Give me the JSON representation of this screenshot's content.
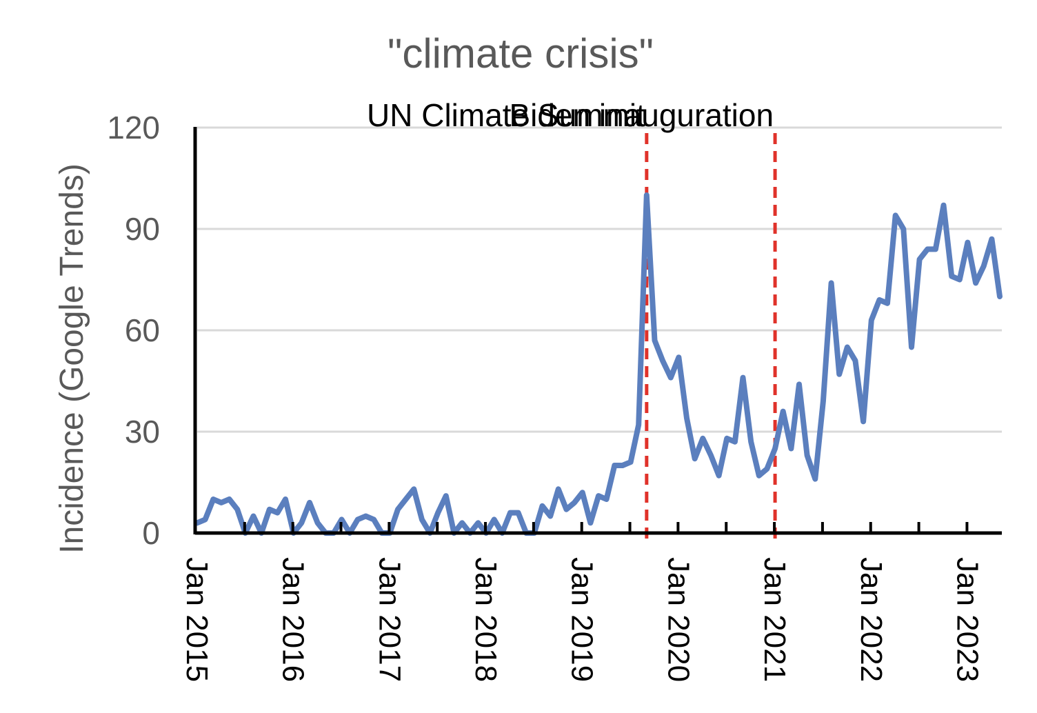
{
  "chart_data": {
    "type": "line",
    "title": "\"climate crisis\"",
    "xlabel": "",
    "ylabel": "Incidence (Google Trends)",
    "ylim": [
      0,
      120
    ],
    "y_ticks": [
      "0",
      "30",
      "60",
      "90",
      "120"
    ],
    "x_tick_labels": [
      "Jan 2015",
      "Jan 2016",
      "Jan 2017",
      "Jan 2018",
      "Jan 2019",
      "Jan 2020",
      "Jan 2021",
      "Jan 2022",
      "Jan 2023"
    ],
    "x_start": "2015-01",
    "grid": true,
    "series": [
      {
        "color": "#5b7fbe",
        "values": [
          3,
          4,
          10,
          9,
          10,
          7,
          0,
          5,
          0,
          7,
          6,
          10,
          0,
          3,
          9,
          3,
          0,
          0,
          4,
          0,
          4,
          5,
          4,
          0,
          0,
          7,
          10,
          13,
          4,
          0,
          6,
          11,
          0,
          3,
          0,
          3,
          0,
          4,
          0,
          6,
          6,
          0,
          0,
          8,
          5,
          13,
          7,
          9,
          12,
          3,
          11,
          10,
          20,
          20,
          21,
          32,
          100,
          57,
          51,
          46,
          52,
          34,
          22,
          28,
          23,
          17,
          28,
          27,
          46,
          27,
          17,
          19,
          25,
          36,
          25,
          44,
          23,
          16,
          39,
          74,
          47,
          55,
          51,
          33,
          63,
          69,
          68,
          94,
          90,
          55,
          81,
          84,
          84,
          97,
          76,
          75,
          86,
          74,
          79,
          87,
          70
        ]
      }
    ],
    "annotations": [
      {
        "label": "UN Climate Summit",
        "date": "2019-09",
        "color": "#e0322a"
      },
      {
        "label": "Biden inauguration",
        "date": "2021-01",
        "color": "#e0322a"
      }
    ]
  }
}
